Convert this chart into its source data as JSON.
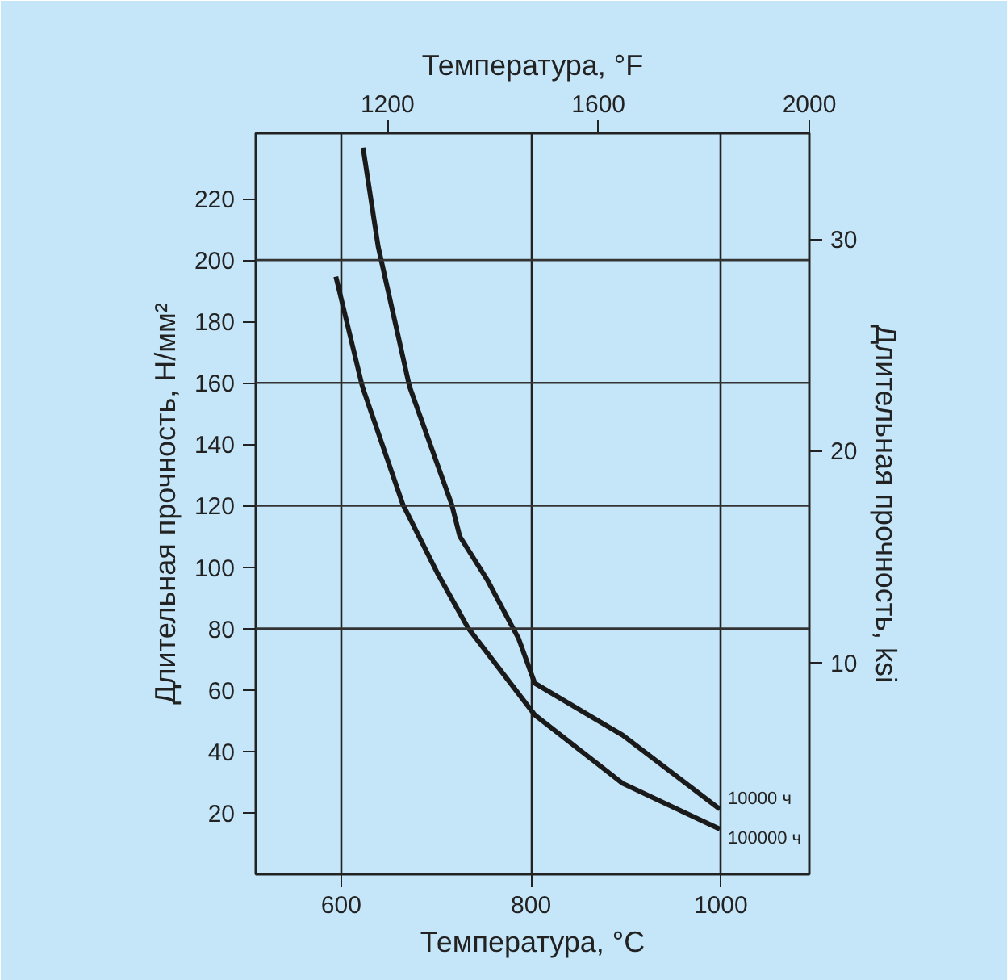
{
  "chart_data": {
    "type": "line",
    "xlabel": "Температура, °C",
    "x2label": "Температура, °F",
    "ylabel": "Длительная прочность, Н/мм²",
    "y2label": "Длительная прочность, ksi",
    "xlim": [
      510,
      1093.3
    ],
    "xticks": [
      600,
      800,
      1000
    ],
    "x2lim": [
      950,
      2000
    ],
    "x2ticks": [
      1200,
      1600,
      2000
    ],
    "ylim": [
      0,
      241.3
    ],
    "yticks": [
      20,
      40,
      60,
      80,
      100,
      120,
      140,
      160,
      180,
      200,
      220
    ],
    "y2lim": [
      0,
      35
    ],
    "y2ticks": [
      10,
      20,
      30
    ],
    "grid": "x",
    "line_style": "solid",
    "marker": "none",
    "ref_lines": [
      {
        "axis": "y",
        "value": 80,
        "color": "#333333"
      },
      {
        "axis": "y",
        "value": 120,
        "color": "#333333"
      },
      {
        "axis": "y",
        "value": 160,
        "color": "#333333"
      },
      {
        "axis": "y",
        "value": 200,
        "color": "#333333"
      }
    ],
    "series": [
      {
        "name": "10000 ч",
        "color": "#1a1a1a",
        "x": [
          623,
          639,
          672,
          716.5,
          725,
          753.7,
          787,
          804,
          896.5,
          999
        ],
        "values": [
          236.6,
          204.3,
          158.8,
          120.4,
          110,
          96,
          76.7,
          62.2,
          45.3,
          21.2
        ]
      },
      {
        "name": "100000 ч",
        "color": "#1a1a1a",
        "x": [
          594.4,
          622.3,
          665,
          702,
          733.7,
          804,
          896.5,
          999
        ],
        "values": [
          194.6,
          158.8,
          120.4,
          97.7,
          80.2,
          51.9,
          29.6,
          14.7
        ]
      }
    ]
  }
}
